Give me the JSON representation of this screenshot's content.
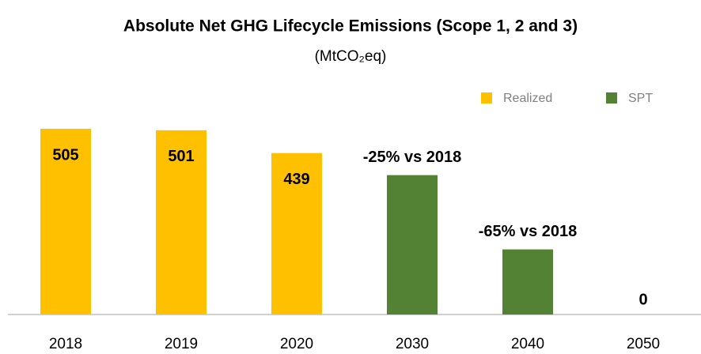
{
  "chart_data": {
    "type": "bar",
    "title": "Absolute Net GHG Lifecycle Emissions (Scope 1, 2 and 3)",
    "subtitle": "(MtCO₂eq)",
    "categories": [
      "2018",
      "2019",
      "2020",
      "2030",
      "2040",
      "2050"
    ],
    "series": [
      {
        "name": "Realized",
        "color": "#FFC000",
        "values": [
          505,
          501,
          439,
          null,
          null,
          null
        ]
      },
      {
        "name": "SPT",
        "color": "#548235",
        "values": [
          null,
          null,
          null,
          379,
          177,
          0
        ]
      }
    ],
    "annotations": [
      "-25% vs 2018",
      "-65% vs 2018"
    ],
    "ylim": [
      0,
      505
    ],
    "legend": "top-right"
  }
}
